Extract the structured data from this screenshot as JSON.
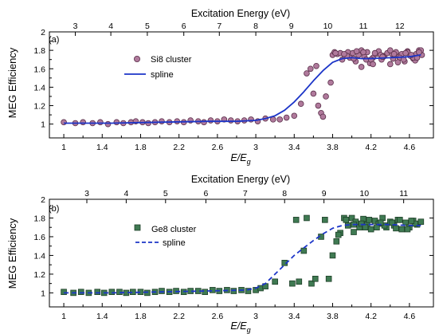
{
  "chart_data": [
    {
      "type": "scatter",
      "panel_label": "(a)",
      "xlabel": "E/E",
      "xlabel_sub": "g",
      "ylabel": "MEG Efficiency",
      "top_xlabel": "Excitation Energy (eV)",
      "xlim": [
        0.85,
        4.85
      ],
      "ylim": [
        0.85,
        2.0
      ],
      "x_ticks": [
        1,
        1.4,
        1.8,
        2.2,
        2.6,
        3,
        3.4,
        3.8,
        4.2,
        4.6
      ],
      "x_tick_labels": [
        "1",
        "1.4",
        "1.8",
        "2.2",
        "2.6",
        "3",
        "3.4",
        "3.8",
        "4.2",
        "4.6"
      ],
      "y_ticks": [
        1,
        1.2,
        1.4,
        1.6,
        1.8,
        2
      ],
      "y_tick_labels": [
        "1",
        "1.2",
        "1.4",
        "1.6",
        "1.8",
        "2"
      ],
      "top_ticks": [
        3,
        4,
        5,
        6,
        7,
        8,
        9,
        10,
        11,
        12
      ],
      "top_tick_labels": [
        "3",
        "4",
        "5",
        "6",
        "7",
        "8",
        "9",
        "10",
        "11",
        "12"
      ],
      "top_ticks_data": [
        1.12,
        1.49,
        1.87,
        2.25,
        2.62,
        3.0,
        3.37,
        3.75,
        4.12,
        4.5
      ],
      "legend_position": "upper-left",
      "colors": {
        "marker": "#b07a9c",
        "marker_edge": "#5a2f4a",
        "spline": "#1c35c8"
      },
      "series": [
        {
          "name": "Si8 cluster",
          "kind": "markers",
          "marker": "circle",
          "x": [
            1.0,
            1.12,
            1.2,
            1.3,
            1.38,
            1.46,
            1.55,
            1.62,
            1.7,
            1.75,
            1.82,
            1.88,
            1.95,
            2.02,
            2.1,
            2.18,
            2.25,
            2.32,
            2.4,
            2.46,
            2.53,
            2.6,
            2.67,
            2.74,
            2.81,
            2.88,
            2.95,
            3.02,
            3.1,
            3.18,
            3.25,
            3.32,
            3.4,
            3.47,
            3.53,
            3.57,
            3.6,
            3.63,
            3.65,
            3.68,
            3.7,
            3.73,
            3.78,
            3.8,
            3.82,
            3.85,
            3.88,
            3.9,
            3.93,
            3.96,
            3.98,
            4.01,
            4.04,
            4.07,
            4.1,
            4.13,
            4.16,
            4.19,
            4.22,
            4.25,
            4.28,
            4.31,
            4.34,
            4.37,
            4.4,
            4.43,
            4.46,
            4.49,
            4.52,
            4.55,
            4.58,
            4.61,
            4.64,
            4.67,
            4.7,
            4.73,
            3.83,
            3.95,
            4.05,
            4.15,
            4.24,
            4.33,
            4.42,
            4.5,
            4.58,
            4.66,
            4.72,
            4.1,
            4.2,
            4.3,
            4.4,
            4.48,
            4.56,
            4.64,
            4.7,
            3.92,
            4.02,
            4.12,
            4.22,
            4.32,
            4.44,
            4.54,
            4.62,
            4.68
          ],
          "y": [
            1.02,
            1.01,
            1.02,
            1.01,
            1.02,
            1.0,
            1.02,
            1.01,
            1.02,
            1.03,
            1.02,
            1.01,
            1.02,
            1.03,
            1.02,
            1.03,
            1.02,
            1.04,
            1.03,
            1.02,
            1.04,
            1.03,
            1.05,
            1.04,
            1.03,
            1.04,
            1.05,
            1.03,
            1.06,
            1.05,
            1.05,
            1.07,
            1.09,
            1.22,
            1.55,
            1.6,
            1.33,
            1.63,
            1.2,
            1.12,
            1.08,
            1.3,
            1.45,
            1.75,
            1.78,
            1.76,
            1.77,
            1.7,
            1.74,
            1.78,
            1.72,
            1.77,
            1.68,
            1.75,
            1.8,
            1.73,
            1.78,
            1.66,
            1.72,
            1.76,
            1.79,
            1.7,
            1.74,
            1.77,
            1.65,
            1.71,
            1.78,
            1.73,
            1.76,
            1.68,
            1.79,
            1.74,
            1.71,
            1.76,
            1.8,
            1.75,
            1.77,
            1.74,
            1.79,
            1.7,
            1.77,
            1.73,
            1.76,
            1.72,
            1.78,
            1.69,
            1.8,
            1.62,
            1.7,
            1.75,
            1.8,
            1.67,
            1.77,
            1.72,
            1.78,
            1.76,
            1.71,
            1.78,
            1.65,
            1.73,
            1.76,
            1.7,
            1.75,
            1.72
          ]
        },
        {
          "name": "spline",
          "kind": "line",
          "style": "solid",
          "x": [
            1.0,
            1.5,
            2.0,
            2.5,
            2.8,
            3.0,
            3.1,
            3.2,
            3.3,
            3.4,
            3.5,
            3.6,
            3.7,
            3.8,
            3.9,
            4.0,
            4.1,
            4.2,
            4.4,
            4.6,
            4.72
          ],
          "y": [
            1.01,
            1.01,
            1.02,
            1.03,
            1.03,
            1.04,
            1.06,
            1.09,
            1.15,
            1.24,
            1.35,
            1.47,
            1.58,
            1.67,
            1.71,
            1.72,
            1.71,
            1.71,
            1.72,
            1.73,
            1.75
          ]
        }
      ]
    },
    {
      "type": "scatter",
      "panel_label": "(b)",
      "xlabel": "E/E",
      "xlabel_sub": "g",
      "ylabel": "MEG Efficiency",
      "top_xlabel": "Excitation Energy (eV)",
      "xlim": [
        0.85,
        4.85
      ],
      "ylim": [
        0.85,
        2.0
      ],
      "x_ticks": [
        1,
        1.4,
        1.8,
        2.2,
        2.6,
        3,
        3.4,
        3.8,
        4.2,
        4.6
      ],
      "x_tick_labels": [
        "1",
        "1.4",
        "1.8",
        "2.2",
        "2.6",
        "3",
        "3.4",
        "3.8",
        "4.2",
        "4.6"
      ],
      "y_ticks": [
        1,
        1.2,
        1.4,
        1.6,
        1.8,
        2
      ],
      "y_tick_labels": [
        "1",
        "1.2",
        "1.4",
        "1.6",
        "1.8",
        "2"
      ],
      "top_ticks": [
        3,
        4,
        5,
        6,
        7,
        8,
        9,
        10,
        11
      ],
      "top_tick_labels": [
        "3",
        "4",
        "5",
        "6",
        "7",
        "8",
        "9",
        "10",
        "11"
      ],
      "top_ticks_data": [
        1.24,
        1.65,
        2.06,
        2.48,
        2.89,
        3.3,
        3.71,
        4.13,
        4.54
      ],
      "legend_position": "upper-left",
      "colors": {
        "marker": "#3f7a52",
        "marker_edge": "#1e3f28",
        "spline": "#1c35c8"
      },
      "series": [
        {
          "name": "Ge8 cluster",
          "kind": "markers",
          "marker": "square",
          "x": [
            1.0,
            1.1,
            1.18,
            1.26,
            1.35,
            1.42,
            1.5,
            1.58,
            1.65,
            1.72,
            1.8,
            1.87,
            1.95,
            2.02,
            2.1,
            2.17,
            2.25,
            2.32,
            2.4,
            2.47,
            2.55,
            2.62,
            2.7,
            2.77,
            2.85,
            2.92,
            3.0,
            3.05,
            3.1,
            3.2,
            3.3,
            3.38,
            3.42,
            3.45,
            3.5,
            3.53,
            3.58,
            3.62,
            3.68,
            3.72,
            3.76,
            3.8,
            3.84,
            3.88,
            3.92,
            3.96,
            4.0,
            4.04,
            4.08,
            4.12,
            4.16,
            4.2,
            4.24,
            4.28,
            4.32,
            4.36,
            4.4,
            4.44,
            4.48,
            4.52,
            4.56,
            4.6,
            4.64,
            4.68,
            4.72,
            3.86,
            3.94,
            4.02,
            4.1,
            4.18,
            4.26,
            4.34,
            4.42,
            4.5,
            4.58,
            4.66,
            4.02,
            4.14,
            4.3,
            4.46,
            4.62
          ],
          "y": [
            1.01,
            1.0,
            1.01,
            1.0,
            1.01,
            1.0,
            1.01,
            1.01,
            1.0,
            1.01,
            1.01,
            1.0,
            1.01,
            1.02,
            1.01,
            1.02,
            1.01,
            1.02,
            1.02,
            1.01,
            1.03,
            1.02,
            1.03,
            1.02,
            1.03,
            1.02,
            1.03,
            1.05,
            1.07,
            1.12,
            1.32,
            1.1,
            1.78,
            1.12,
            1.45,
            1.8,
            1.1,
            1.15,
            1.6,
            1.78,
            1.15,
            1.4,
            1.55,
            1.64,
            1.8,
            1.72,
            1.8,
            1.76,
            1.7,
            1.79,
            1.73,
            1.68,
            1.77,
            1.74,
            1.8,
            1.7,
            1.76,
            1.72,
            1.78,
            1.68,
            1.75,
            1.7,
            1.77,
            1.73,
            1.76,
            1.62,
            1.78,
            1.65,
            1.74,
            1.78,
            1.7,
            1.72,
            1.75,
            1.78,
            1.68,
            1.74,
            1.73,
            1.7,
            1.75,
            1.69,
            1.77
          ]
        },
        {
          "name": "spline",
          "kind": "line",
          "style": "dashed",
          "x": [
            1.0,
            1.5,
            2.0,
            2.5,
            2.9,
            3.0,
            3.1,
            3.2,
            3.3,
            3.4,
            3.5,
            3.6,
            3.7,
            3.8,
            3.9,
            4.0,
            4.2,
            4.4,
            4.6,
            4.72
          ],
          "y": [
            1.0,
            1.0,
            1.01,
            1.02,
            1.03,
            1.05,
            1.1,
            1.2,
            1.3,
            1.4,
            1.48,
            1.56,
            1.63,
            1.69,
            1.72,
            1.73,
            1.73,
            1.73,
            1.72,
            1.72
          ]
        }
      ]
    }
  ]
}
